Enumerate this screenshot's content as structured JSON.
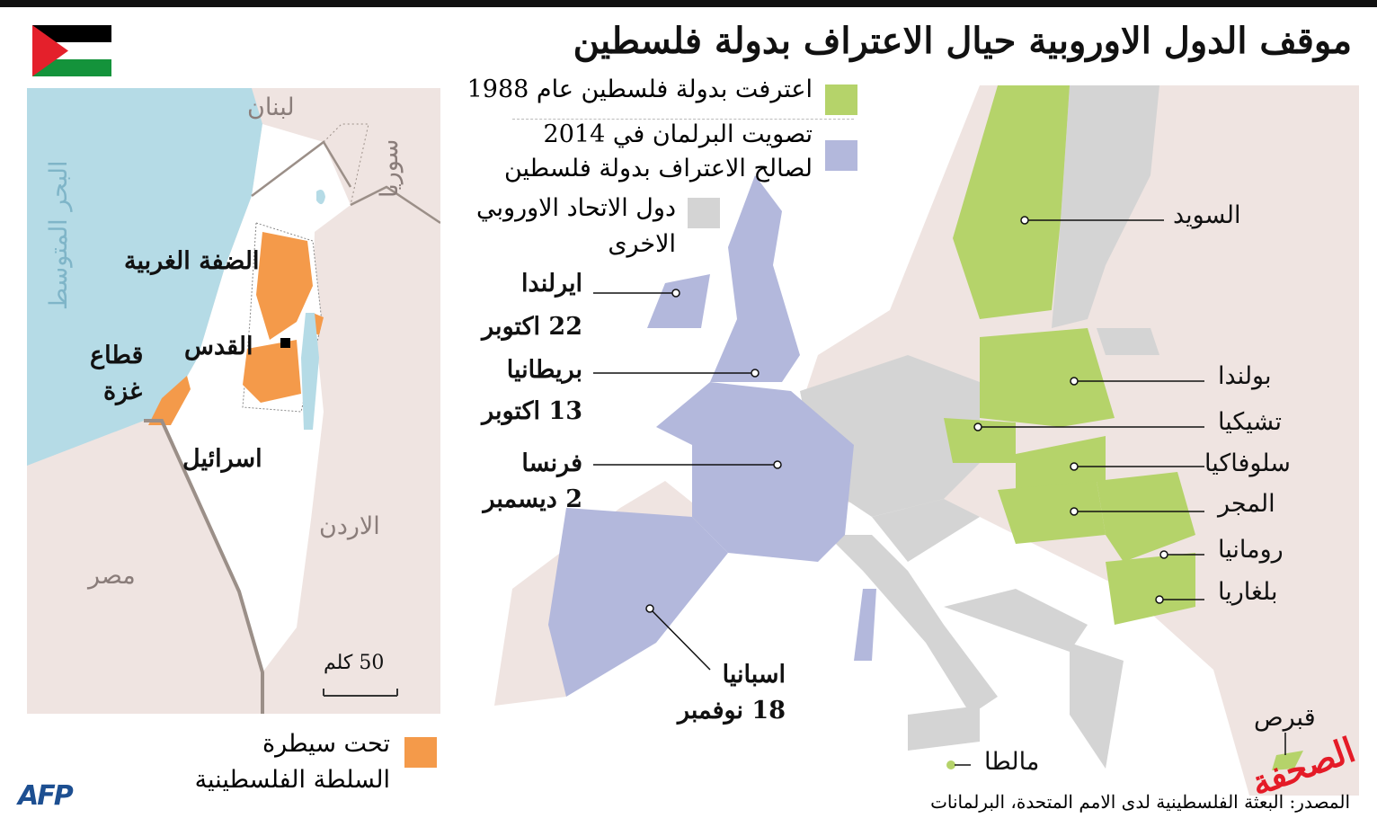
{
  "title": "موقف الدول الاوروبية حيال الاعتراف بدولة فلسطين",
  "colors": {
    "recognized_1988": "#b5d36a",
    "parliament_2014": "#b3b8dc",
    "other_eu": "#d4d4d4",
    "pa_control": "#f49a4a",
    "sea": "#b5dbe6",
    "land": "#efe4e1"
  },
  "legend": {
    "recognized_1988": "اعترفت بدولة فلسطين عام 1988",
    "parliament_2014_line1": "تصويت البرلمان في 2014",
    "parliament_2014_line2": "لصالح الاعتراف بدولة فلسطين",
    "other_eu_line1": "دول الاتحاد الاوروبي",
    "other_eu_line2": "الاخرى"
  },
  "europe_labels": {
    "sweden": "السويد",
    "poland": "بولندا",
    "czech": "تشيكيا",
    "slovakia": "سلوفاكيا",
    "hungary": "المجر",
    "romania": "رومانيا",
    "bulgaria": "بلغاريا",
    "malta": "مالطا",
    "cyprus": "قبرص",
    "ireland": "ايرلندا",
    "ireland_date": "22 اكتوبر",
    "uk": "بريطانيا",
    "uk_date": "13 اكتوبر",
    "france": "فرنسا",
    "france_date": "2 ديسمبر",
    "spain": "اسبانيا",
    "spain_date": "18 نوفمبر"
  },
  "inset": {
    "lebanon": "لبنان",
    "syria": "سوريا",
    "sea": "البحر المتوسط",
    "west_bank": "الضفة الغربية",
    "jerusalem": "القدس",
    "gaza_line1": "قطاع",
    "gaza_line2": "غزة",
    "israel": "اسرائيل",
    "jordan": "الاردن",
    "egypt": "مصر",
    "scale": "50 كلم",
    "legend_line1": "تحت سيطرة",
    "legend_line2": "السلطة الفلسطينية"
  },
  "source": "المصدر: البعثة الفلسطينية لدى الامم المتحدة، البرلمانات",
  "logo": "AFP",
  "watermark": "الصحفة"
}
